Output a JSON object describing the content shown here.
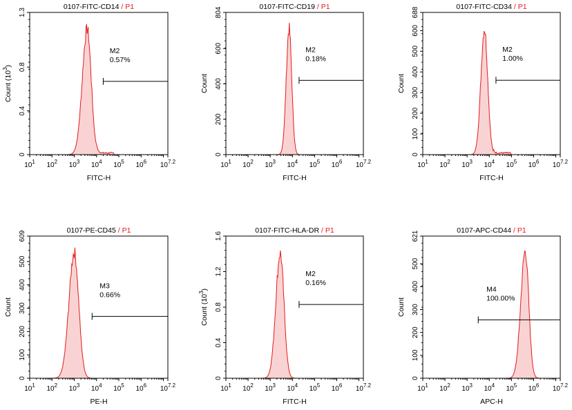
{
  "figure": {
    "description_color_curve": "#e51a1a",
    "fill_color": "#f9d3d3",
    "gate_color": "#000000"
  },
  "chart_data": [
    {
      "type": "histogram",
      "title": "0107-FITC-CD14",
      "gate_label": "P1",
      "title_sep": " / ",
      "xlabel": "FITC-H",
      "ylabel": "Count (10",
      "ylabel_exp": "3",
      "ylabel_close": ")",
      "x_log_min": 1,
      "x_log_max": 7.2,
      "x_ticks": [
        {
          "b": "10",
          "e": "1"
        },
        {
          "b": "10",
          "e": "2"
        },
        {
          "b": "10",
          "e": "3"
        },
        {
          "b": "10",
          "e": "4"
        },
        {
          "b": "10",
          "e": "5"
        },
        {
          "b": "10",
          "e": "6"
        },
        {
          "b": "10",
          "e": "7.2"
        }
      ],
      "y_max": 1.3,
      "y_ticks": [
        {
          "v": 0,
          "label": "0"
        },
        {
          "v": 0.4,
          "label": "0.4"
        },
        {
          "v": 0.8,
          "label": "0.8"
        },
        {
          "v": 1.3,
          "label": "1.3"
        }
      ],
      "peak_log": 3.58,
      "peak_count": 1.16,
      "sigma_left": 0.22,
      "sigma_right": 0.18,
      "tail": true,
      "marker": {
        "name": "M2",
        "percent": "0.57%",
        "start_log": 4.3,
        "end_log": 7.2,
        "level": 0.67
      }
    },
    {
      "type": "histogram",
      "title": "0107-FITC-CD19",
      "gate_label": "P1",
      "title_sep": " / ",
      "xlabel": "FITC-H",
      "ylabel": "Count",
      "ylabel_exp": "",
      "ylabel_close": "",
      "x_log_min": 1,
      "x_log_max": 7.2,
      "x_ticks": [
        {
          "b": "10",
          "e": "1"
        },
        {
          "b": "10",
          "e": "2"
        },
        {
          "b": "10",
          "e": "3"
        },
        {
          "b": "10",
          "e": "4"
        },
        {
          "b": "10",
          "e": "5"
        },
        {
          "b": "10",
          "e": "6"
        },
        {
          "b": "10",
          "e": "7.2"
        }
      ],
      "y_max": 804,
      "y_ticks": [
        {
          "v": 0,
          "label": "0"
        },
        {
          "v": 200,
          "label": "200"
        },
        {
          "v": 400,
          "label": "400"
        },
        {
          "v": 600,
          "label": "600"
        },
        {
          "v": 804,
          "label": "804"
        }
      ],
      "peak_log": 3.85,
      "peak_count": 720,
      "sigma_left": 0.13,
      "sigma_right": 0.12,
      "tail": false,
      "marker": {
        "name": "M2",
        "percent": "0.18%",
        "start_log": 4.3,
        "end_log": 7.2,
        "level": 420
      }
    },
    {
      "type": "histogram",
      "title": "0107-FITC-CD34",
      "gate_label": "P1",
      "title_sep": " / ",
      "xlabel": "FITC-H",
      "ylabel": "Count",
      "ylabel_exp": "",
      "ylabel_close": "",
      "x_log_min": 1,
      "x_log_max": 7.2,
      "x_ticks": [
        {
          "b": "10",
          "e": "1"
        },
        {
          "b": "10",
          "e": "2"
        },
        {
          "b": "10",
          "e": "3"
        },
        {
          "b": "10",
          "e": "4"
        },
        {
          "b": "10",
          "e": "5"
        },
        {
          "b": "10",
          "e": "6"
        },
        {
          "b": "10",
          "e": "7.2"
        }
      ],
      "y_max": 688,
      "y_ticks": [
        {
          "v": 0,
          "label": "0"
        },
        {
          "v": 100,
          "label": "100"
        },
        {
          "v": 200,
          "label": "200"
        },
        {
          "v": 300,
          "label": "300"
        },
        {
          "v": 400,
          "label": "400"
        },
        {
          "v": 500,
          "label": "500"
        },
        {
          "v": 600,
          "label": "600"
        },
        {
          "v": 688,
          "label": "688"
        }
      ],
      "peak_log": 3.78,
      "peak_count": 615,
      "sigma_left": 0.16,
      "sigma_right": 0.15,
      "tail": true,
      "marker": {
        "name": "M2",
        "percent": "1.00%",
        "start_log": 4.3,
        "end_log": 7.2,
        "level": 360
      }
    },
    {
      "type": "histogram",
      "title": "0107-PE-CD45",
      "gate_label": "P1",
      "title_sep": " / ",
      "xlabel": "PE-H",
      "ylabel": "Count",
      "ylabel_exp": "",
      "ylabel_close": "",
      "x_log_min": 1,
      "x_log_max": 7.2,
      "x_ticks": [
        {
          "b": "10",
          "e": "1"
        },
        {
          "b": "10",
          "e": "2"
        },
        {
          "b": "10",
          "e": "3"
        },
        {
          "b": "10",
          "e": "4"
        },
        {
          "b": "10",
          "e": "5"
        },
        {
          "b": "10",
          "e": "6"
        },
        {
          "b": "10",
          "e": "7.2"
        }
      ],
      "y_max": 609,
      "y_ticks": [
        {
          "v": 0,
          "label": "0"
        },
        {
          "v": 100,
          "label": "100"
        },
        {
          "v": 200,
          "label": "200"
        },
        {
          "v": 300,
          "label": "300"
        },
        {
          "v": 400,
          "label": "400"
        },
        {
          "v": 500,
          "label": "500"
        },
        {
          "v": 609,
          "label": "609"
        }
      ],
      "peak_log": 3.0,
      "peak_count": 545,
      "sigma_left": 0.24,
      "sigma_right": 0.2,
      "tail": false,
      "marker": {
        "name": "M3",
        "percent": "0.66%",
        "start_log": 3.8,
        "end_log": 7.2,
        "level": 265
      }
    },
    {
      "type": "histogram",
      "title": "0107-FITC-HLA-DR",
      "gate_label": "P1",
      "title_sep": " / ",
      "xlabel": "FITC-H",
      "ylabel": "Count (10",
      "ylabel_exp": "3",
      "ylabel_close": ")",
      "x_log_min": 1,
      "x_log_max": 7.2,
      "x_ticks": [
        {
          "b": "10",
          "e": "1"
        },
        {
          "b": "10",
          "e": "2"
        },
        {
          "b": "10",
          "e": "3"
        },
        {
          "b": "10",
          "e": "4"
        },
        {
          "b": "10",
          "e": "5"
        },
        {
          "b": "10",
          "e": "6"
        },
        {
          "b": "10",
          "e": "7.2"
        }
      ],
      "y_max": 1.6,
      "y_ticks": [
        {
          "v": 0,
          "label": "0"
        },
        {
          "v": 0.4,
          "label": "0.4"
        },
        {
          "v": 0.8,
          "label": "0.8"
        },
        {
          "v": 1.2,
          "label": "1.2"
        },
        {
          "v": 1.6,
          "label": "1.6"
        }
      ],
      "peak_log": 3.45,
      "peak_count": 1.42,
      "sigma_left": 0.2,
      "sigma_right": 0.17,
      "tail": false,
      "marker": {
        "name": "M2",
        "percent": "0.16%",
        "start_log": 4.3,
        "end_log": 7.2,
        "level": 0.83
      }
    },
    {
      "type": "histogram",
      "title": "0107-APC-CD44",
      "gate_label": "P1",
      "title_sep": " / ",
      "xlabel": "APC-H",
      "ylabel": "Count",
      "ylabel_exp": "",
      "ylabel_close": "",
      "x_log_min": 1,
      "x_log_max": 7.2,
      "x_ticks": [
        {
          "b": "10",
          "e": "1"
        },
        {
          "b": "10",
          "e": "2"
        },
        {
          "b": "10",
          "e": "3"
        },
        {
          "b": "10",
          "e": "4"
        },
        {
          "b": "10",
          "e": "5"
        },
        {
          "b": "10",
          "e": "6"
        },
        {
          "b": "10",
          "e": "7.2"
        }
      ],
      "y_max": 621,
      "y_ticks": [
        {
          "v": 0,
          "label": "0"
        },
        {
          "v": 100,
          "label": "100"
        },
        {
          "v": 200,
          "label": "200"
        },
        {
          "v": 300,
          "label": "300"
        },
        {
          "v": 400,
          "label": "400"
        },
        {
          "v": 500,
          "label": "500"
        },
        {
          "v": 621,
          "label": "621"
        }
      ],
      "peak_log": 5.62,
      "peak_count": 560,
      "sigma_left": 0.2,
      "sigma_right": 0.16,
      "tail": false,
      "marker": {
        "name": "M4",
        "percent": "100.00%",
        "start_log": 3.5,
        "end_log": 7.2,
        "level": 255
      }
    }
  ]
}
